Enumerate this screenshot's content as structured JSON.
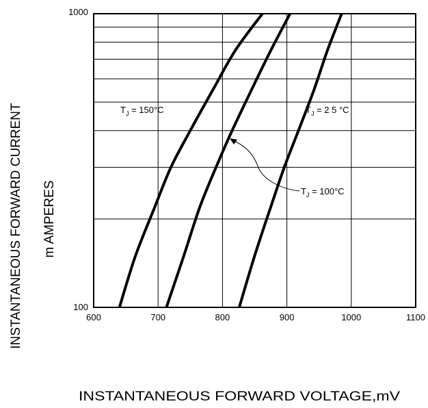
{
  "chart_data": {
    "type": "line",
    "title": "",
    "xlabel": "INSTANTANEOUS FORWARD VOLTAGE,mV",
    "ylabel_line1": "INSTANTANEOUS FORWARD CURRENT",
    "ylabel_line2": "m AMPERES",
    "xlim": [
      600,
      1100
    ],
    "ylim": [
      100,
      1000
    ],
    "yscale": "log",
    "grid": true,
    "x_ticks": [
      600,
      700,
      800,
      900,
      1000,
      1100
    ],
    "x_tick_labels": [
      "600",
      "700",
      "800",
      "900",
      "1000",
      "1100"
    ],
    "y_tick_labels": [
      "100",
      "1000"
    ],
    "y_gridlines": [
      200,
      300,
      400,
      500,
      600,
      700,
      800,
      900
    ],
    "series": [
      {
        "label": "T",
        "label_sub": "J",
        "label_rest": " = 150°C",
        "x": [
          640,
          665,
          695,
          720,
          750,
          785,
          820,
          862
        ],
        "y": [
          100,
          150,
          220,
          300,
          400,
          550,
          750,
          1000
        ]
      },
      {
        "label": "T",
        "label_sub": "J",
        "label_rest": " = 100°C",
        "x": [
          713,
          740,
          765,
          790,
          815,
          845,
          875,
          905
        ],
        "y": [
          100,
          150,
          220,
          300,
          400,
          550,
          750,
          1000
        ]
      },
      {
        "label": "T",
        "label_sub": "J",
        "label_rest": " = 2 5 °C",
        "x": [
          826,
          850,
          875,
          896,
          918,
          942,
          963,
          985
        ],
        "y": [
          100,
          150,
          220,
          300,
          400,
          550,
          750,
          1000
        ]
      }
    ]
  }
}
